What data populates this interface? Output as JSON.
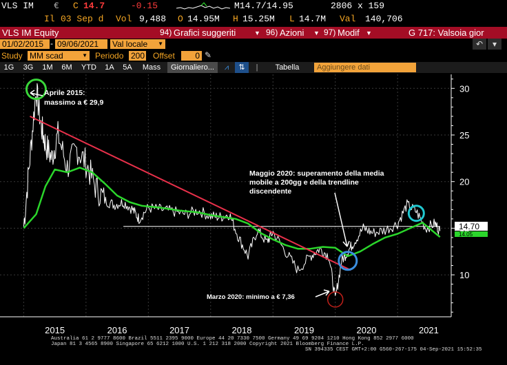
{
  "quote": {
    "ticker": "VLS IM",
    "currency": "€",
    "c_label": "C",
    "last": "14.7",
    "change": "-0.15",
    "m_range": "M14.7/14.95",
    "size": "2806 x 159",
    "il_label": "Il",
    "date": "03 Sep d",
    "vol_label": "Vol",
    "volume": "9,488",
    "open_label": "O",
    "open": "14.95M",
    "high_label": "H",
    "high": "15.25M",
    "low_label": "L",
    "low": "14.7M",
    "val_label": "Val",
    "value": "140,706"
  },
  "titlebar": {
    "security": "VLS IM Equity",
    "menu1_num": "94)",
    "menu1": "Grafici suggeriti",
    "menu2_num": "96)",
    "menu2": "Azioni",
    "menu3_num": "97)",
    "menu3": "Modif",
    "page": "G 717: Valsoia gior"
  },
  "range": {
    "start": "01/02/2015",
    "end": "09/06/2021",
    "currency": "Val locale"
  },
  "study": {
    "label": "Study",
    "value": "MM scad",
    "period_label": "Periodo",
    "period": "200",
    "offset_label": "Offset",
    "offset": "0"
  },
  "tabs": {
    "items": [
      "1G",
      "3G",
      "1M",
      "6M",
      "YTD",
      "1A",
      "5A",
      "Mass",
      "Giornaliero..."
    ],
    "table": "Tabella",
    "add_placeholder": "Aggiungere dati"
  },
  "chart": {
    "last_price_label": "14.70",
    "ma_label": "14.05",
    "annotations": {
      "peak_title": "Aprile 2015:",
      "peak_text": "massimo a € 29,9",
      "may_line1": "Maggio 2020: superamento della media",
      "may_line2": "mobile a 200gg e della trendline",
      "may_line3": "discendente",
      "march": "Marzo 2020: minimo a € 7,36"
    },
    "colors": {
      "price": "#ffffff",
      "ma": "#2bd62b",
      "trendline": "#e8304a",
      "support": "#ffffff",
      "circle_green": "#3ad63a",
      "circle_blue": "#3b8fe0",
      "circle_red": "#c0201a",
      "circle_cyan": "#20c8d0"
    }
  },
  "chart_data": {
    "type": "line",
    "title": "",
    "xlabel": "",
    "ylabel": "",
    "x_ticks": [
      "2015",
      "2016",
      "2017",
      "2018",
      "2019",
      "2020",
      "2021"
    ],
    "y_ticks": [
      10,
      15,
      20,
      25,
      30
    ],
    "ylim": [
      5.5,
      31.5
    ],
    "grid": true,
    "series": [
      {
        "kind": "price",
        "x": [
          2015.0,
          2015.1,
          2015.2,
          2015.28,
          2015.35,
          2015.45,
          2015.55,
          2015.7,
          2015.85,
          2016.0,
          2016.15,
          2016.3,
          2016.45,
          2016.6,
          2016.75,
          2016.85,
          2017.0,
          2017.2,
          2017.4,
          2017.6,
          2017.8,
          2018.0,
          2018.15,
          2018.3,
          2018.45,
          2018.6,
          2018.75,
          2018.9,
          2019.0,
          2019.2,
          2019.4,
          2019.6,
          2019.75,
          2019.9,
          2020.0,
          2020.1,
          2020.2,
          2020.3,
          2020.45,
          2020.6,
          2020.8,
          2021.0,
          2021.15,
          2021.3,
          2021.45,
          2021.6,
          2021.68
        ],
        "y": [
          15.2,
          22.5,
          29.9,
          26.0,
          24.0,
          22.5,
          25.0,
          21.5,
          23.5,
          22.0,
          19.5,
          18.0,
          17.5,
          17.8,
          17.0,
          16.0,
          17.2,
          17.0,
          16.8,
          16.5,
          16.9,
          16.3,
          16.2,
          16.5,
          14.0,
          12.0,
          14.8,
          13.5,
          14.6,
          12.5,
          10.5,
          12.0,
          12.8,
          12.0,
          7.36,
          11.5,
          12.5,
          13.5,
          15.0,
          14.5,
          14.8,
          15.5,
          17.5,
          16.8,
          15.0,
          15.5,
          14.7
        ]
      },
      {
        "kind": "moving_average_200",
        "x": [
          2015.0,
          2015.2,
          2015.35,
          2015.5,
          2015.7,
          2015.9,
          2016.1,
          2016.3,
          2016.5,
          2016.7,
          2016.9,
          2017.2,
          2017.5,
          2017.8,
          2018.0,
          2018.2,
          2018.4,
          2018.6,
          2018.8,
          2019.0,
          2019.2,
          2019.4,
          2019.6,
          2019.8,
          2020.0,
          2020.2,
          2020.4,
          2020.6,
          2020.8,
          2021.0,
          2021.2,
          2021.4,
          2021.68
        ],
        "y": [
          15.0,
          16.5,
          19.5,
          21.3,
          21.0,
          21.5,
          21.0,
          19.8,
          18.5,
          17.8,
          17.4,
          17.2,
          16.9,
          16.7,
          16.4,
          16.2,
          16.0,
          15.5,
          14.5,
          13.8,
          13.2,
          12.8,
          12.8,
          13.0,
          12.9,
          12.0,
          12.5,
          13.3,
          14.0,
          14.4,
          15.0,
          15.6,
          14.05
        ]
      },
      {
        "kind": "trendline",
        "x": [
          2015.1,
          2020.25
        ],
        "y": [
          27.0,
          10.5
        ]
      },
      {
        "kind": "support",
        "x": [
          2016.6,
          2021.68
        ],
        "y": [
          15.2,
          15.2
        ]
      }
    ],
    "markers": [
      {
        "name": "peak",
        "x": 2015.2,
        "y": 29.9
      },
      {
        "name": "march-low",
        "x": 2020.0,
        "y": 7.36
      },
      {
        "name": "breakout",
        "x": 2020.2,
        "y": 11.5
      },
      {
        "name": "recent-high",
        "x": 2021.3,
        "y": 16.6
      }
    ]
  },
  "footer": {
    "line1": "Australia 61 2 9777 8600  Brazil 5511 2395 9000  Europe 44 20 7330 7500  Germany 49 69 9204 1210  Hong Kong 852 2977 6000",
    "line2": "Japan 81 3 4565 8900        Singapore 65 6212 1000        U.S. 1 212 318 2000        Copyright 2021 Bloomberg Finance L.P.",
    "line3": "SN 394335 CEST GMT+2:00 G560-267-175 04-Sep-2021 15:52:35"
  }
}
